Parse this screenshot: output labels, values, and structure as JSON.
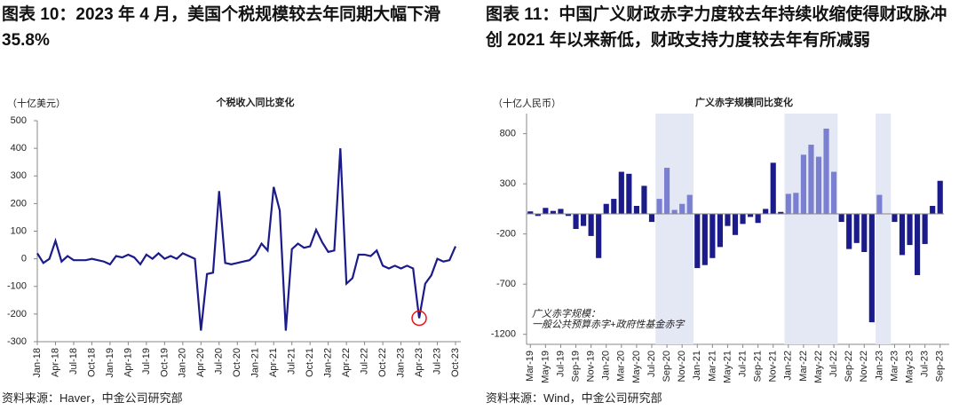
{
  "chart_data": [
    {
      "type": "line",
      "header": "图表 10：2023 年 4 月，美国个税规模较去年同期大幅下滑 35.8%",
      "title": "个税收入同比变化",
      "unit_label": "（十亿美元）",
      "source": "资料来源：Haver，中金公司研究部",
      "categories": [
        "Jan-18",
        null,
        null,
        "Apr-18",
        null,
        null,
        "Jul-18",
        null,
        null,
        "Oct-18",
        null,
        null,
        "Jan-19",
        null,
        null,
        "Apr-19",
        null,
        null,
        "Jul-19",
        null,
        null,
        "Oct-19",
        null,
        null,
        "Jan-20",
        null,
        null,
        "Apr-20",
        null,
        null,
        "Jul-20",
        null,
        null,
        "Oct-20",
        null,
        null,
        "Jan-21",
        null,
        null,
        "Apr-21",
        null,
        null,
        "Jul-21",
        null,
        null,
        "Oct-21",
        null,
        null,
        "Jan-22",
        null,
        null,
        "Apr-22",
        null,
        null,
        "Jul-22",
        null,
        null,
        "Oct-22",
        null,
        null,
        "Jan-23",
        null,
        null,
        "Apr-23",
        null,
        null,
        "Jul-23",
        null,
        null,
        "Oct-23"
      ],
      "values": [
        20,
        -15,
        0,
        65,
        -10,
        10,
        -5,
        -5,
        -5,
        0,
        -5,
        -10,
        -20,
        10,
        5,
        15,
        5,
        -20,
        15,
        0,
        20,
        0,
        10,
        0,
        20,
        10,
        0,
        -260,
        -55,
        -50,
        245,
        -15,
        -20,
        -15,
        -10,
        -5,
        15,
        55,
        30,
        260,
        175,
        -260,
        35,
        55,
        40,
        45,
        105,
        60,
        25,
        30,
        400,
        -90,
        -70,
        15,
        15,
        10,
        30,
        -25,
        -35,
        -25,
        -35,
        -25,
        -35,
        -215,
        -90,
        -60,
        0,
        -10,
        -5,
        45
      ],
      "color": "#1b1b8a",
      "highlight": {
        "index": 63,
        "color": "#e8141c"
      },
      "ylim": [
        -300,
        500
      ],
      "yticks": [
        -300,
        -200,
        -100,
        0,
        100,
        200,
        300,
        400,
        500
      ]
    },
    {
      "type": "bar",
      "header": "图表 11：中国广义财政赤字力度较去年持续收缩使得财政脉冲创 2021 年以来新低，财政支持力度较去年有所减弱",
      "title": "广义赤字规模同比变化",
      "unit_label": "（十亿人民币）",
      "source": "资料来源：Wind，中金公司研究部",
      "annotation": [
        "广义赤字规模：",
        "一般公共预算赤字+政府性基金赤字"
      ],
      "categories": [
        "Mar-19",
        null,
        "May-19",
        null,
        "Jul-19",
        null,
        "Sep-19",
        null,
        "Nov-19",
        null,
        "Jan-20",
        null,
        "Mar-20",
        null,
        "May-20",
        null,
        "Jul-20",
        null,
        "Sep-20",
        null,
        "Nov-20",
        null,
        "Jan-21",
        null,
        "Mar-21",
        null,
        "May-21",
        null,
        "Jul-21",
        null,
        "Sep-21",
        null,
        "Nov-21",
        null,
        "Jan-22",
        null,
        "Mar-22",
        null,
        "May-22",
        null,
        "Jul-22",
        null,
        "Sep-22",
        null,
        "Nov-22",
        null,
        "Jan-23",
        null,
        "Mar-23",
        null,
        "May-23",
        null,
        "Jul-23",
        null,
        "Sep-23"
      ],
      "values": [
        25,
        -20,
        60,
        30,
        50,
        -20,
        -150,
        -120,
        -220,
        -440,
        100,
        150,
        420,
        400,
        80,
        280,
        -80,
        150,
        460,
        40,
        100,
        190,
        -540,
        -510,
        -440,
        -330,
        -120,
        -210,
        -100,
        -30,
        -90,
        50,
        510,
        20,
        200,
        210,
        590,
        690,
        570,
        850,
        420,
        -80,
        -350,
        -290,
        -380,
        -1080,
        190,
        5,
        -80,
        -410,
        -310,
        -610,
        -300,
        80,
        330
      ],
      "color": "#1b1b8a",
      "highlight_color": "#7b7fcf",
      "shade_color": "#e4e7f4",
      "shaded_ranges": [
        [
          17,
          21
        ],
        [
          34,
          40
        ],
        [
          46,
          47
        ]
      ],
      "ylim": [
        -1300,
        1000
      ],
      "yticks": [
        -1200,
        -700,
        -200,
        300,
        800
      ]
    }
  ]
}
